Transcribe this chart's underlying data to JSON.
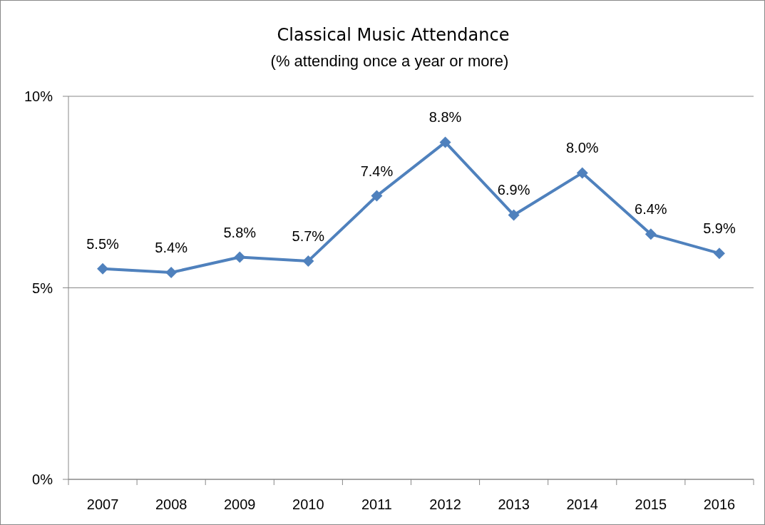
{
  "chart_data": {
    "type": "line",
    "title": "Classical Music Attendance",
    "subtitle": "(% attending once a year or more)",
    "categories": [
      "2007",
      "2008",
      "2009",
      "2010",
      "2011",
      "2012",
      "2013",
      "2014",
      "2015",
      "2016"
    ],
    "series": [
      {
        "color": "#4f81bd",
        "values": [
          5.5,
          5.4,
          5.8,
          5.7,
          7.4,
          8.8,
          6.9,
          8.0,
          6.4,
          5.9
        ]
      }
    ],
    "value_labels": [
      "5.5%",
      "5.4%",
      "5.8%",
      "5.7%",
      "7.4%",
      "8.8%",
      "6.9%",
      "8.0%",
      "6.4%",
      "5.9%"
    ],
    "ylim": [
      0,
      10
    ],
    "yticks": [
      {
        "value": 0,
        "label": "0%"
      },
      {
        "value": 5,
        "label": "5%"
      },
      {
        "value": 10,
        "label": "10%"
      }
    ],
    "grid": "y",
    "marker": "diamond",
    "line_style": "solid"
  }
}
